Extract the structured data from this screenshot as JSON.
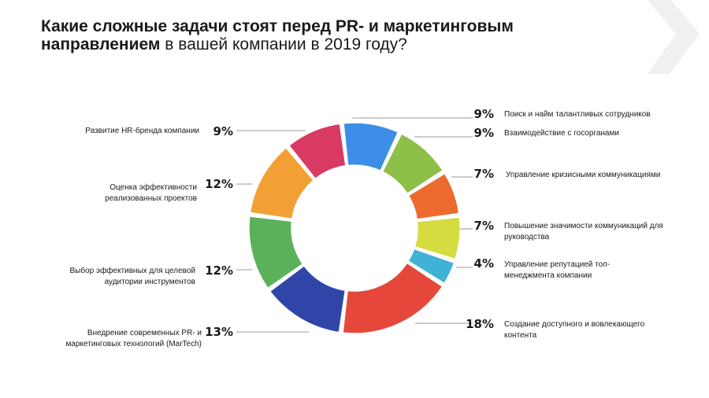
{
  "title": {
    "bold_line1": "Какие сложные задачи стоят перед PR- и маркетинговым",
    "bold_line2": "направлением",
    "light_line2": " в вашей компании в 2019 году?"
  },
  "colors": {
    "brand_chevron": "#f0f0f0",
    "leader_line": "#9a9a9a"
  },
  "chart_data": {
    "type": "pie",
    "donut": true,
    "start_angle_deg": -7,
    "slices": [
      {
        "label": "Поиск и найм талантливых сотрудников",
        "lines": [
          "Поиск и найм талантливых сотрудников"
        ],
        "value": 9,
        "pct_label": "9%",
        "color": "#3d8ee6",
        "side": "right"
      },
      {
        "label": "Взаимодействие с госорганами",
        "lines": [
          "Взаимодействие с госорганами"
        ],
        "value": 9,
        "pct_label": "9%",
        "color": "#8dc049",
        "side": "right"
      },
      {
        "label": "Управление кризисными коммуникациями",
        "lines": [
          "Управление кризисными коммуникациями"
        ],
        "value": 7,
        "pct_label": "7%",
        "color": "#ec6a2e",
        "side": "right"
      },
      {
        "label": "Повышение значимости коммуникаций для руководства",
        "lines": [
          "Повышение значимости коммуникаций для",
          "руководства"
        ],
        "value": 7,
        "pct_label": "7%",
        "color": "#d4dc3f",
        "side": "right"
      },
      {
        "label": "Управление репутацией топ-менеджмента компании",
        "lines": [
          "Управление репутацией топ-",
          "менеджмента компании"
        ],
        "value": 4,
        "pct_label": "4%",
        "color": "#3fb2d6",
        "side": "right"
      },
      {
        "label": "Создание доступного и вовлекающего контента",
        "lines": [
          "Создание доступного и вовлекающего",
          "контента"
        ],
        "value": 18,
        "pct_label": "18%",
        "color": "#e5483a",
        "side": "right"
      },
      {
        "label": "Внедрение современных PR- и маркетинговых технологий (MarTech)",
        "lines": [
          "Внедрение современных PR- и",
          "маркетинговых технологий (MarTech)"
        ],
        "value": 13,
        "pct_label": "13%",
        "color": "#2f46a8",
        "side": "left"
      },
      {
        "label": "Выбор эффективных для целевой аудитории инструментов",
        "lines": [
          "Выбор эффективных для целевой",
          "аудитории инструментов"
        ],
        "value": 12,
        "pct_label": "12%",
        "color": "#5bb05a",
        "side": "left"
      },
      {
        "label": "Оценка эффективности реализованных проектов",
        "lines": [
          "Оценка эффективности",
          "реализованных проектов"
        ],
        "value": 12,
        "pct_label": "12%",
        "color": "#f2a035",
        "side": "left"
      },
      {
        "label": "Развитие HR-бренда компании",
        "lines": [
          "Развитие HR-бренда компании"
        ],
        "value": 9,
        "pct_label": "9%",
        "color": "#d83a63",
        "side": "left"
      }
    ]
  }
}
